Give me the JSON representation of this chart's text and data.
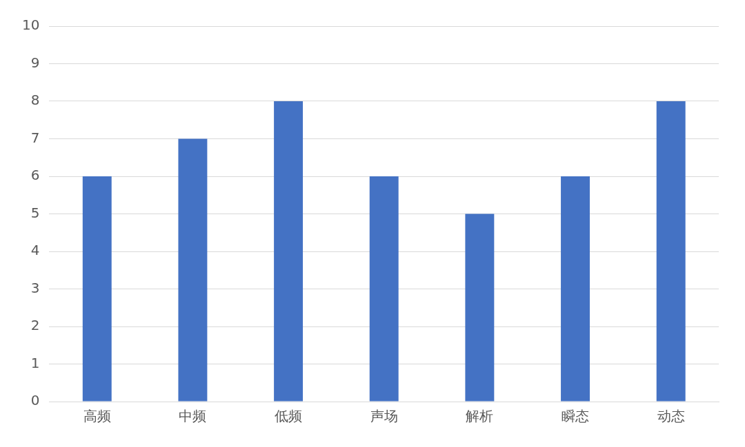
{
  "chart_data": {
    "type": "bar",
    "categories": [
      "高频",
      "中频",
      "低频",
      "声场",
      "解析",
      "瞬态",
      "动态"
    ],
    "values": [
      6,
      7,
      8,
      6,
      5,
      6,
      8
    ],
    "color": "#4472c4",
    "ylim": [
      0,
      10
    ],
    "yticks": [
      0,
      1,
      2,
      3,
      4,
      5,
      6,
      7,
      8,
      9,
      10
    ],
    "grid": "y"
  }
}
